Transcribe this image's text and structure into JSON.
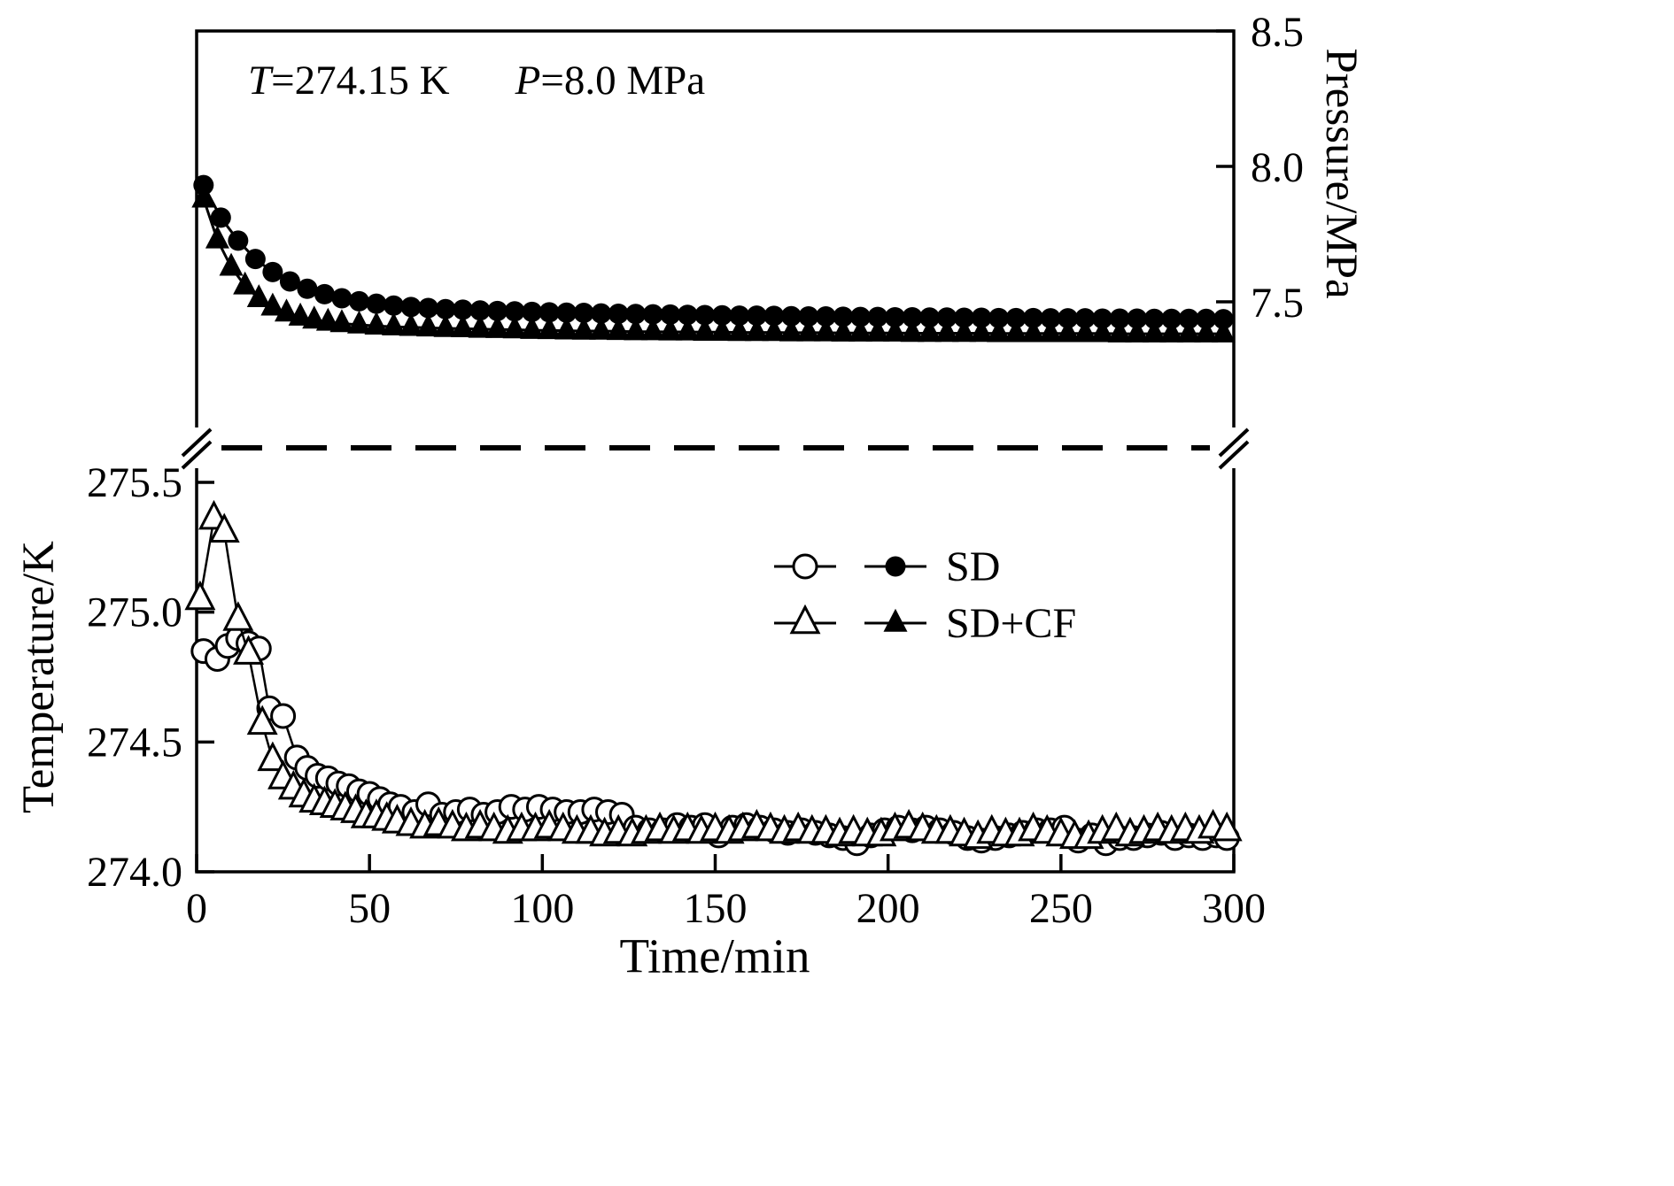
{
  "annotation": {
    "t_symbol": "T",
    "t_value": "=274.15 K",
    "p_symbol": "P",
    "p_value": "=8.0 MPa"
  },
  "legend": {
    "items": [
      {
        "label": "SD",
        "marker_open": "circle-open",
        "marker_filled": "circle-filled"
      },
      {
        "label": "SD+CF",
        "marker_open": "triangle-open",
        "marker_filled": "triangle-filled"
      }
    ]
  },
  "chart_data": {
    "type": "line",
    "xlabel": "Time/min",
    "xlim": [
      0,
      300
    ],
    "xticks": {
      "values": [
        0,
        50,
        100,
        150,
        200,
        250,
        300
      ],
      "labels": [
        "0",
        "50",
        "100",
        "150",
        "200",
        "250",
        "300"
      ]
    },
    "pressure_axis": {
      "label": "Pressure/MPa",
      "side": "right",
      "ylim": [
        7.0,
        8.5
      ],
      "ticks": {
        "values": [
          8.5,
          8.0,
          7.5
        ],
        "labels": [
          "8.5",
          "8.0",
          "7.5"
        ]
      }
    },
    "temperature_axis": {
      "label": "Temperature/K",
      "side": "left",
      "ylim": [
        274.0,
        275.5
      ],
      "ticks": {
        "values": [
          275.5,
          275.0,
          274.5,
          274.0
        ],
        "labels": [
          "275.5",
          "275.0",
          "274.5",
          "274.0"
        ]
      }
    },
    "separator": {
      "style": "dashed",
      "axis_break": true
    },
    "series": [
      {
        "name": "SD",
        "axis": "pressure",
        "marker": "circle-filled",
        "points": [
          [
            2,
            7.931
          ],
          [
            7,
            7.811
          ],
          [
            12,
            7.726
          ],
          [
            17,
            7.658
          ],
          [
            22,
            7.61
          ],
          [
            27,
            7.575
          ],
          [
            32,
            7.548
          ],
          [
            37,
            7.528
          ],
          [
            42,
            7.513
          ],
          [
            47,
            7.502
          ],
          [
            52,
            7.493
          ],
          [
            57,
            7.486
          ],
          [
            62,
            7.481
          ],
          [
            67,
            7.477
          ],
          [
            72,
            7.473
          ],
          [
            77,
            7.471
          ],
          [
            82,
            7.468
          ],
          [
            87,
            7.466
          ],
          [
            92,
            7.465
          ],
          [
            97,
            7.463
          ],
          [
            102,
            7.461
          ],
          [
            107,
            7.46
          ],
          [
            112,
            7.459
          ],
          [
            117,
            7.457
          ],
          [
            122,
            7.456
          ],
          [
            127,
            7.455
          ],
          [
            132,
            7.454
          ],
          [
            137,
            7.453
          ],
          [
            142,
            7.452
          ],
          [
            147,
            7.451
          ],
          [
            152,
            7.45
          ],
          [
            157,
            7.449
          ],
          [
            162,
            7.449
          ],
          [
            167,
            7.448
          ],
          [
            172,
            7.447
          ],
          [
            177,
            7.446
          ],
          [
            182,
            7.446
          ],
          [
            187,
            7.445
          ],
          [
            192,
            7.444
          ],
          [
            197,
            7.444
          ],
          [
            202,
            7.443
          ],
          [
            207,
            7.443
          ],
          [
            212,
            7.442
          ],
          [
            217,
            7.442
          ],
          [
            222,
            7.441
          ],
          [
            227,
            7.441
          ],
          [
            232,
            7.44
          ],
          [
            237,
            7.44
          ],
          [
            242,
            7.44
          ],
          [
            247,
            7.439
          ],
          [
            252,
            7.439
          ],
          [
            257,
            7.439
          ],
          [
            262,
            7.438
          ],
          [
            267,
            7.438
          ],
          [
            272,
            7.438
          ],
          [
            277,
            7.437
          ],
          [
            282,
            7.437
          ],
          [
            287,
            7.437
          ],
          [
            292,
            7.437
          ],
          [
            297,
            7.436
          ]
        ]
      },
      {
        "name": "SD+CF",
        "axis": "pressure",
        "marker": "triangle-filled",
        "points": [
          [
            2,
            7.88
          ],
          [
            6,
            7.729
          ],
          [
            10,
            7.628
          ],
          [
            14,
            7.559
          ],
          [
            18,
            7.512
          ],
          [
            22,
            7.481
          ],
          [
            26,
            7.459
          ],
          [
            30,
            7.444
          ],
          [
            34,
            7.433
          ],
          [
            38,
            7.425
          ],
          [
            42,
            7.42
          ],
          [
            47,
            7.415
          ],
          [
            52,
            7.411
          ],
          [
            57,
            7.408
          ],
          [
            62,
            7.406
          ],
          [
            67,
            7.404
          ],
          [
            72,
            7.402
          ],
          [
            77,
            7.401
          ],
          [
            82,
            7.399
          ],
          [
            87,
            7.398
          ],
          [
            92,
            7.397
          ],
          [
            97,
            7.395
          ],
          [
            102,
            7.394
          ],
          [
            107,
            7.393
          ],
          [
            112,
            7.392
          ],
          [
            117,
            7.392
          ],
          [
            122,
            7.391
          ],
          [
            127,
            7.39
          ],
          [
            132,
            7.39
          ],
          [
            137,
            7.389
          ],
          [
            142,
            7.389
          ],
          [
            147,
            7.388
          ],
          [
            152,
            7.388
          ],
          [
            157,
            7.387
          ],
          [
            162,
            7.387
          ],
          [
            167,
            7.387
          ],
          [
            172,
            7.386
          ],
          [
            177,
            7.386
          ],
          [
            182,
            7.386
          ],
          [
            187,
            7.385
          ],
          [
            192,
            7.385
          ],
          [
            197,
            7.385
          ],
          [
            202,
            7.385
          ],
          [
            207,
            7.384
          ],
          [
            212,
            7.384
          ],
          [
            217,
            7.384
          ],
          [
            222,
            7.384
          ],
          [
            227,
            7.384
          ],
          [
            232,
            7.383
          ],
          [
            237,
            7.383
          ],
          [
            242,
            7.383
          ],
          [
            247,
            7.383
          ],
          [
            252,
            7.383
          ],
          [
            257,
            7.383
          ],
          [
            262,
            7.383
          ],
          [
            267,
            7.382
          ],
          [
            272,
            7.382
          ],
          [
            277,
            7.382
          ],
          [
            282,
            7.382
          ],
          [
            287,
            7.382
          ],
          [
            292,
            7.382
          ],
          [
            297,
            7.382
          ]
        ]
      },
      {
        "name": "SD",
        "axis": "temperature",
        "marker": "circle-open",
        "points": [
          [
            2,
            274.85
          ],
          [
            6,
            274.82
          ],
          [
            9,
            274.87
          ],
          [
            12,
            274.9
          ],
          [
            15,
            274.88
          ],
          [
            18,
            274.86
          ],
          [
            21,
            274.63
          ],
          [
            25,
            274.6
          ],
          [
            29,
            274.44
          ],
          [
            32,
            274.4
          ],
          [
            35,
            274.37
          ],
          [
            38,
            274.36
          ],
          [
            41,
            274.34
          ],
          [
            44,
            274.33
          ],
          [
            47,
            274.31
          ],
          [
            50,
            274.3
          ],
          [
            53,
            274.28
          ],
          [
            56,
            274.26
          ],
          [
            59,
            274.25
          ],
          [
            63,
            274.23
          ],
          [
            67,
            274.26
          ],
          [
            71,
            274.22
          ],
          [
            75,
            274.23
          ],
          [
            79,
            274.24
          ],
          [
            83,
            274.22
          ],
          [
            87,
            274.23
          ],
          [
            91,
            274.25
          ],
          [
            95,
            274.24
          ],
          [
            99,
            274.25
          ],
          [
            103,
            274.24
          ],
          [
            107,
            274.23
          ],
          [
            111,
            274.23
          ],
          [
            115,
            274.24
          ],
          [
            119,
            274.23
          ],
          [
            123,
            274.22
          ],
          [
            127,
            274.17
          ],
          [
            131,
            274.16
          ],
          [
            135,
            274.16
          ],
          [
            139,
            274.18
          ],
          [
            143,
            274.17
          ],
          [
            147,
            274.18
          ],
          [
            151,
            274.14
          ],
          [
            155,
            274.17
          ],
          [
            159,
            274.18
          ],
          [
            163,
            274.17
          ],
          [
            167,
            274.16
          ],
          [
            171,
            274.15
          ],
          [
            175,
            274.16
          ],
          [
            179,
            274.15
          ],
          [
            183,
            274.14
          ],
          [
            187,
            274.13
          ],
          [
            191,
            274.11
          ],
          [
            195,
            274.14
          ],
          [
            199,
            274.16
          ],
          [
            203,
            274.17
          ],
          [
            207,
            274.16
          ],
          [
            211,
            274.17
          ],
          [
            215,
            274.16
          ],
          [
            219,
            274.15
          ],
          [
            223,
            274.13
          ],
          [
            227,
            274.12
          ],
          [
            231,
            274.13
          ],
          [
            235,
            274.14
          ],
          [
            239,
            274.15
          ],
          [
            243,
            274.16
          ],
          [
            247,
            274.16
          ],
          [
            251,
            274.17
          ],
          [
            255,
            274.12
          ],
          [
            259,
            274.14
          ],
          [
            263,
            274.11
          ],
          [
            267,
            274.13
          ],
          [
            271,
            274.13
          ],
          [
            275,
            274.14
          ],
          [
            279,
            274.15
          ],
          [
            283,
            274.13
          ],
          [
            287,
            274.14
          ],
          [
            291,
            274.13
          ],
          [
            295,
            274.14
          ],
          [
            298,
            274.13
          ]
        ]
      },
      {
        "name": "SD+CF",
        "axis": "temperature",
        "marker": "triangle-open",
        "points": [
          [
            1,
            275.05
          ],
          [
            5,
            275.36
          ],
          [
            8,
            275.31
          ],
          [
            12,
            274.97
          ],
          [
            15,
            274.84
          ],
          [
            19,
            274.57
          ],
          [
            22,
            274.43
          ],
          [
            25,
            274.36
          ],
          [
            28,
            274.32
          ],
          [
            31,
            274.29
          ],
          [
            34,
            274.27
          ],
          [
            37,
            274.26
          ],
          [
            40,
            274.25
          ],
          [
            43,
            274.24
          ],
          [
            46,
            274.23
          ],
          [
            49,
            274.21
          ],
          [
            52,
            274.21
          ],
          [
            55,
            274.2
          ],
          [
            58,
            274.19
          ],
          [
            62,
            274.18
          ],
          [
            66,
            274.17
          ],
          [
            70,
            274.18
          ],
          [
            74,
            274.17
          ],
          [
            78,
            274.16
          ],
          [
            82,
            274.17
          ],
          [
            86,
            274.16
          ],
          [
            90,
            274.15
          ],
          [
            94,
            274.16
          ],
          [
            98,
            274.16
          ],
          [
            102,
            274.17
          ],
          [
            106,
            274.16
          ],
          [
            110,
            274.15
          ],
          [
            114,
            274.15
          ],
          [
            118,
            274.14
          ],
          [
            122,
            274.15
          ],
          [
            126,
            274.14
          ],
          [
            130,
            274.15
          ],
          [
            134,
            274.16
          ],
          [
            138,
            274.15
          ],
          [
            142,
            274.16
          ],
          [
            146,
            274.15
          ],
          [
            150,
            274.16
          ],
          [
            154,
            274.15
          ],
          [
            158,
            274.16
          ],
          [
            162,
            274.17
          ],
          [
            166,
            274.16
          ],
          [
            170,
            274.15
          ],
          [
            174,
            274.16
          ],
          [
            178,
            274.15
          ],
          [
            182,
            274.15
          ],
          [
            186,
            274.14
          ],
          [
            190,
            274.15
          ],
          [
            194,
            274.14
          ],
          [
            198,
            274.14
          ],
          [
            202,
            274.16
          ],
          [
            206,
            274.17
          ],
          [
            210,
            274.16
          ],
          [
            214,
            274.15
          ],
          [
            218,
            274.15
          ],
          [
            222,
            274.14
          ],
          [
            226,
            274.13
          ],
          [
            230,
            274.15
          ],
          [
            234,
            274.14
          ],
          [
            238,
            274.14
          ],
          [
            242,
            274.16
          ],
          [
            246,
            274.15
          ],
          [
            250,
            274.14
          ],
          [
            254,
            274.13
          ],
          [
            258,
            274.13
          ],
          [
            262,
            274.15
          ],
          [
            266,
            274.16
          ],
          [
            270,
            274.14
          ],
          [
            274,
            274.15
          ],
          [
            278,
            274.16
          ],
          [
            282,
            274.15
          ],
          [
            286,
            274.16
          ],
          [
            290,
            274.15
          ],
          [
            294,
            274.17
          ],
          [
            298,
            274.16
          ]
        ]
      }
    ]
  }
}
